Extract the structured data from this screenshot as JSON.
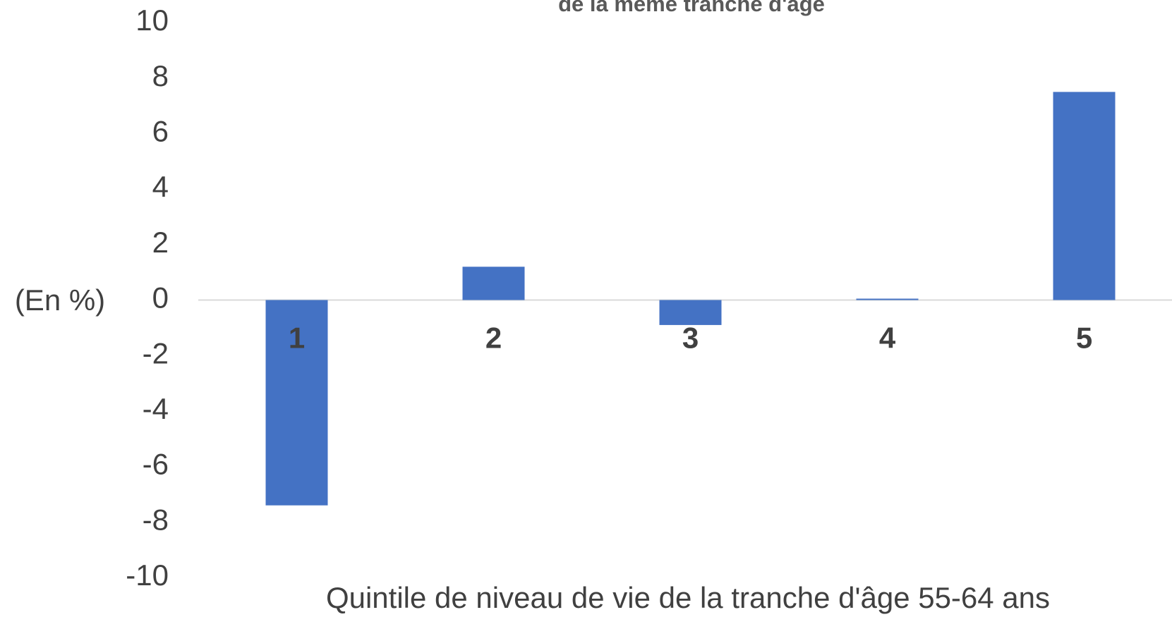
{
  "chart_data": {
    "type": "bar",
    "title": "de la même tranche d'âge",
    "y_label": "(En %)",
    "x_label": "Quintile de niveau de vie de la tranche d'âge 55-64 ans",
    "categories": [
      "1",
      "2",
      "3",
      "4",
      "5"
    ],
    "values": [
      -7.4,
      1.2,
      -0.9,
      0.05,
      7.5
    ],
    "color": "#4472c4",
    "ylim": [
      -10,
      10
    ],
    "yticks": [
      -10,
      -8,
      -6,
      -4,
      -2,
      0,
      2,
      4,
      6,
      8,
      10
    ],
    "grid": false
  }
}
